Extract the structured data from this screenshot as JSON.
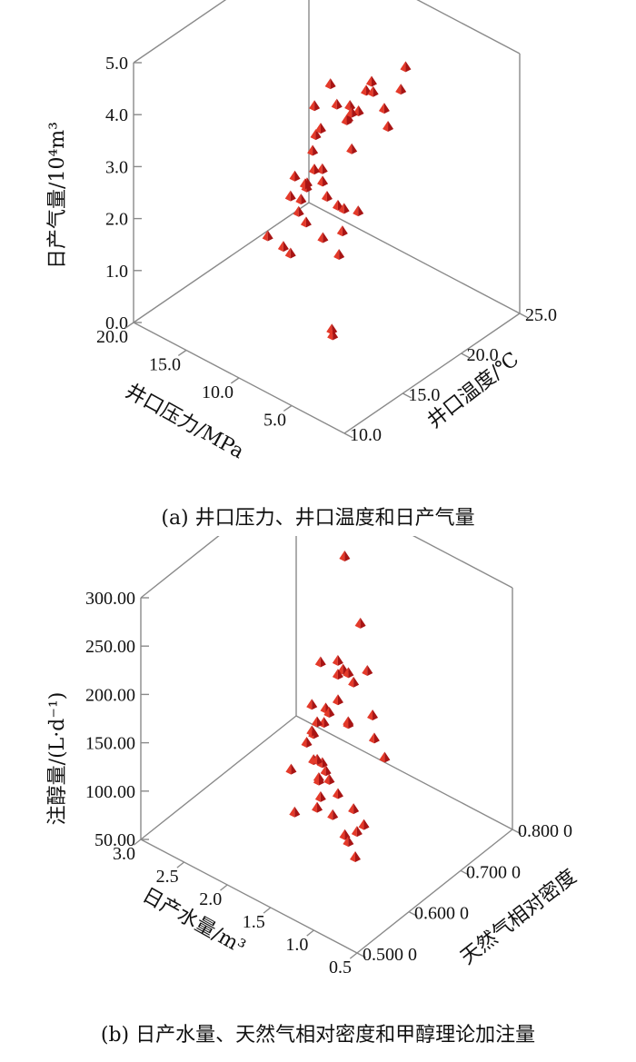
{
  "chart_data": [
    {
      "id": "a",
      "type": "scatter3d",
      "caption": "(a) 井口压力、井口温度和日产气量",
      "x_axis": {
        "label": "井口压力/MPa",
        "range": [
          0,
          20
        ],
        "ticks": [
          "5.0",
          "10.0",
          "15.0",
          "20.0"
        ],
        "tick_values": [
          5,
          10,
          15,
          20
        ]
      },
      "y_axis": {
        "label": "井口温度/℃",
        "range": [
          10,
          25
        ],
        "ticks": [
          "10.0",
          "15.0",
          "20.0",
          "25.0"
        ],
        "tick_values": [
          10,
          15,
          20,
          25
        ]
      },
      "z_axis": {
        "label": "日产气量/10⁴m³",
        "range": [
          0,
          5
        ],
        "ticks": [
          "0.0",
          "1.0",
          "2.0",
          "3.0",
          "4.0",
          "5.0"
        ],
        "tick_values": [
          0,
          1,
          2,
          3,
          4,
          5
        ]
      },
      "marker_color": "#d42020",
      "points": [
        [
          4.4,
          14.6,
          5.0
        ],
        [
          5.7,
          17.6,
          4.8
        ],
        [
          7.4,
          19.0,
          4.6
        ],
        [
          6.2,
          16.8,
          4.5
        ],
        [
          5.5,
          20.2,
          4.9
        ],
        [
          4.4,
          18.8,
          4.8
        ],
        [
          8.2,
          16.2,
          4.9
        ],
        [
          4.4,
          11.4,
          4.4
        ],
        [
          3.4,
          16.8,
          4.5
        ],
        [
          4.4,
          14.6,
          4.3
        ],
        [
          7.9,
          17.6,
          4.3
        ],
        [
          7.8,
          18.9,
          4.4
        ],
        [
          8.7,
          17.2,
          4.3
        ],
        [
          8.9,
          16.0,
          4.0
        ],
        [
          10.6,
          17.0,
          4.1
        ],
        [
          8.0,
          14.5,
          3.9
        ],
        [
          6.6,
          12.6,
          3.7
        ],
        [
          10.7,
          17.2,
          3.5
        ],
        [
          6.0,
          11.5,
          3.4
        ],
        [
          7.5,
          14.9,
          3.3
        ],
        [
          10.2,
          19.4,
          3.5
        ],
        [
          9.3,
          16.5,
          3.1
        ],
        [
          3.8,
          13.4,
          3.4
        ],
        [
          7.9,
          13.9,
          3.3
        ],
        [
          8.2,
          14.2,
          3.3
        ],
        [
          9.8,
          14.6,
          3.2
        ],
        [
          7.3,
          15.1,
          3.0
        ],
        [
          10.1,
          14.5,
          2.8
        ],
        [
          8.6,
          11.2,
          2.7
        ],
        [
          4.9,
          9.2,
          3.2
        ],
        [
          2.5,
          11.8,
          2.9
        ],
        [
          6.4,
          12.5,
          3.0
        ],
        [
          5.6,
          14.5,
          3.1
        ],
        [
          4.2,
          17.2,
          4.7
        ],
        [
          12.3,
          21.4,
          3.0
        ],
        [
          10.1,
          15.4,
          2.6
        ],
        [
          10.1,
          14.5,
          1.7
        ],
        [
          5.1,
          13.6,
          0.8
        ],
        [
          6.4,
          14.7,
          0.6
        ],
        [
          10.8,
          17.9,
          1.4
        ],
        [
          11.0,
          21.1,
          1.4
        ],
        [
          11.5,
          20.2,
          1.1
        ]
      ]
    },
    {
      "id": "b",
      "type": "scatter3d",
      "caption": "(b) 日产水量、天然气相对密度和甲醇理论加注量",
      "x_axis": {
        "label": "日产水量/m³",
        "range": [
          0.5,
          3.0
        ],
        "ticks": [
          "0.5",
          "1.0",
          "1.5",
          "2.0",
          "2.5",
          "3.0"
        ],
        "tick_values": [
          0.5,
          1.0,
          1.5,
          2.0,
          2.5,
          3.0
        ]
      },
      "y_axis": {
        "label": "天然气相对密度",
        "range": [
          0.5,
          0.8
        ],
        "ticks": [
          "0.500 0",
          "0.600 0",
          "0.700 0",
          "0.800 0"
        ],
        "tick_values": [
          0.5,
          0.6,
          0.7,
          0.8
        ]
      },
      "z_axis": {
        "label": "注醇量/(L·d⁻¹)",
        "range": [
          50,
          300
        ],
        "ticks": [
          "50.00",
          "100.00",
          "150.00",
          "200.00",
          "250.00",
          "300.00"
        ],
        "tick_values": [
          50,
          100,
          150,
          200,
          250,
          300
        ]
      },
      "marker_color": "#d42020",
      "points": [
        [
          0.9,
          0.55,
          300
        ],
        [
          0.9,
          0.56,
          286
        ],
        [
          1.3,
          0.64,
          294
        ],
        [
          1.1,
          0.62,
          263
        ],
        [
          0.8,
          0.58,
          248
        ],
        [
          1.2,
          0.58,
          245
        ],
        [
          1.5,
          0.63,
          236
        ],
        [
          1.5,
          0.64,
          237
        ],
        [
          0.6,
          0.57,
          218
        ],
        [
          0.9,
          0.6,
          211
        ],
        [
          1.2,
          0.6,
          212
        ],
        [
          1.8,
          0.68,
          215
        ],
        [
          2.0,
          0.68,
          204
        ],
        [
          1.6,
          0.63,
          192
        ],
        [
          2.2,
          0.76,
          270
        ],
        [
          1.5,
          0.59,
          165
        ],
        [
          1.3,
          0.58,
          158
        ],
        [
          1.4,
          0.59,
          158
        ],
        [
          0.9,
          0.56,
          155
        ],
        [
          1.2,
          0.58,
          148
        ],
        [
          2.0,
          0.69,
          152
        ],
        [
          1.8,
          0.7,
          143
        ],
        [
          2.1,
          0.68,
          128
        ],
        [
          0.9,
          0.58,
          130
        ],
        [
          2.1,
          0.69,
          133
        ],
        [
          1.8,
          0.65,
          122
        ],
        [
          2.2,
          0.72,
          115
        ],
        [
          2.2,
          0.7,
          112
        ],
        [
          2.4,
          0.73,
          120
        ],
        [
          1.1,
          0.6,
          105
        ],
        [
          1.0,
          0.58,
          92
        ],
        [
          1.2,
          0.6,
          90
        ],
        [
          1.3,
          0.61,
          88
        ],
        [
          1.5,
          0.62,
          95
        ],
        [
          1.7,
          0.63,
          100
        ],
        [
          1.9,
          0.66,
          95
        ],
        [
          2.2,
          0.7,
          85
        ],
        [
          2.4,
          0.72,
          85
        ],
        [
          1.8,
          0.64,
          80
        ],
        [
          2.0,
          0.63,
          70
        ],
        [
          2.4,
          0.69,
          70
        ],
        [
          2.2,
          0.71,
          62
        ]
      ]
    }
  ]
}
